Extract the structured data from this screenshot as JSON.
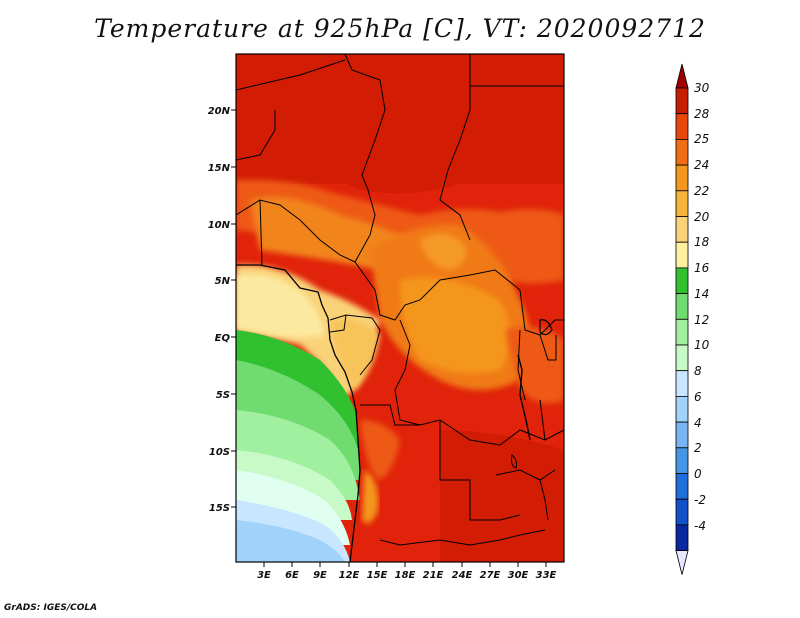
{
  "title": "Temperature at 925hPa [C], VT: 2020092712",
  "footer": "GrADS: IGES/COLA",
  "map": {
    "lat_labels": [
      "20N",
      "15N",
      "10N",
      "5N",
      "EQ",
      "5S",
      "10S",
      "15S"
    ],
    "lon_labels": [
      "3E",
      "6E",
      "9E",
      "12E",
      "15E",
      "18E",
      "21E",
      "24E",
      "27E",
      "30E",
      "33E"
    ]
  },
  "colorbar": {
    "labels": [
      "30",
      "28",
      "25",
      "24",
      "22",
      "20",
      "18",
      "16",
      "14",
      "12",
      "10",
      "8",
      "6",
      "4",
      "2",
      "0",
      "-2",
      "-4"
    ],
    "colors": [
      "#a00000",
      "#c81e00",
      "#e8460a",
      "#f06e14",
      "#f5961e",
      "#f7b43c",
      "#fad278",
      "#fff0a0",
      "#30c030",
      "#70dc70",
      "#a0f0a0",
      "#c8fac8",
      "#c8e6ff",
      "#a0d2fa",
      "#78b4f0",
      "#4696e6",
      "#1e6edc",
      "#1450c8",
      "#0a28a0",
      "#000064"
    ]
  }
}
